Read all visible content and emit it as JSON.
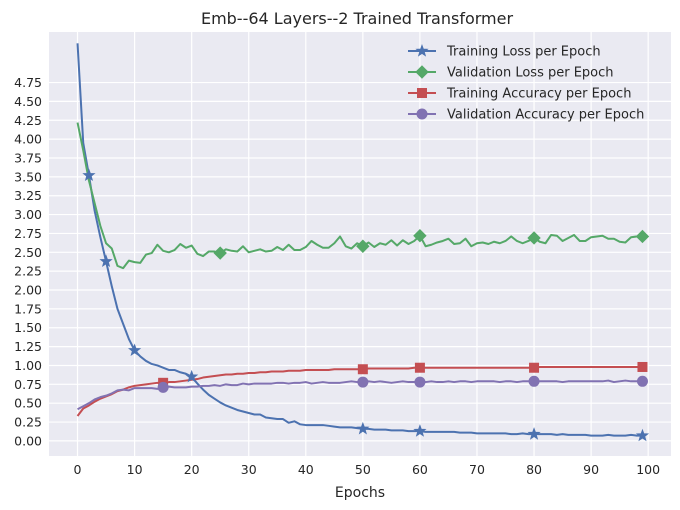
{
  "chart_data": {
    "type": "line",
    "title": "Emb--64 Layers--2 Trained Transformer",
    "xlabel": "Epochs",
    "ylabel": "",
    "xlim": [
      -5,
      104
    ],
    "ylim": [
      -0.2,
      5.42
    ],
    "x_ticks": [
      0,
      10,
      20,
      30,
      40,
      50,
      60,
      70,
      80,
      90,
      100
    ],
    "y_ticks": [
      0.0,
      0.25,
      0.5,
      0.75,
      1.0,
      1.25,
      1.5,
      1.75,
      2.0,
      2.25,
      2.5,
      2.75,
      3.0,
      3.25,
      3.5,
      3.75,
      4.0,
      4.25,
      4.5,
      4.75
    ],
    "y_tick_labels": [
      "0.00",
      "0.25",
      "0.50",
      "0.75",
      "1.00",
      "1.25",
      "1.50",
      "1.75",
      "2.00",
      "2.25",
      "2.50",
      "2.75",
      "3.00",
      "3.25",
      "3.50",
      "3.75",
      "4.00",
      "4.25",
      "4.50",
      "4.75"
    ],
    "grid": true,
    "legend_position": "top-right",
    "x": [
      0,
      1,
      2,
      3,
      4,
      5,
      6,
      7,
      8,
      9,
      10,
      11,
      12,
      13,
      14,
      15,
      16,
      17,
      18,
      19,
      20,
      21,
      22,
      23,
      24,
      25,
      26,
      27,
      28,
      29,
      30,
      31,
      32,
      33,
      34,
      35,
      36,
      37,
      38,
      39,
      40,
      41,
      42,
      43,
      44,
      45,
      46,
      47,
      48,
      49,
      50,
      51,
      52,
      53,
      54,
      55,
      56,
      57,
      58,
      59,
      60,
      61,
      62,
      63,
      64,
      65,
      66,
      67,
      68,
      69,
      70,
      71,
      72,
      73,
      74,
      75,
      76,
      77,
      78,
      79,
      80,
      81,
      82,
      83,
      84,
      85,
      86,
      87,
      88,
      89,
      90,
      91,
      92,
      93,
      94,
      95,
      96,
      97,
      98,
      99
    ],
    "series": [
      {
        "name": "Training Loss per Epoch",
        "color": "#4c72b0",
        "marker": "star",
        "marker_x": [
          2,
          5,
          10,
          20,
          50,
          60,
          80,
          99
        ],
        "values": [
          5.27,
          3.95,
          3.52,
          3.05,
          2.7,
          2.38,
          2.05,
          1.75,
          1.55,
          1.35,
          1.2,
          1.12,
          1.06,
          1.02,
          1.0,
          0.97,
          0.94,
          0.94,
          0.91,
          0.89,
          0.85,
          0.76,
          0.68,
          0.61,
          0.56,
          0.51,
          0.47,
          0.44,
          0.41,
          0.39,
          0.37,
          0.35,
          0.35,
          0.31,
          0.3,
          0.29,
          0.29,
          0.24,
          0.26,
          0.22,
          0.21,
          0.21,
          0.21,
          0.21,
          0.2,
          0.19,
          0.18,
          0.18,
          0.18,
          0.17,
          0.16,
          0.16,
          0.15,
          0.15,
          0.15,
          0.14,
          0.14,
          0.14,
          0.13,
          0.13,
          0.13,
          0.12,
          0.12,
          0.12,
          0.12,
          0.12,
          0.12,
          0.11,
          0.11,
          0.11,
          0.1,
          0.1,
          0.1,
          0.1,
          0.1,
          0.1,
          0.09,
          0.09,
          0.1,
          0.09,
          0.09,
          0.09,
          0.09,
          0.09,
          0.08,
          0.09,
          0.08,
          0.08,
          0.08,
          0.08,
          0.07,
          0.07,
          0.07,
          0.08,
          0.07,
          0.07,
          0.07,
          0.08,
          0.07,
          0.07
        ]
      },
      {
        "name": "Validation Loss per Epoch",
        "color": "#55a868",
        "marker": "diamond",
        "marker_x": [
          25,
          50,
          60,
          80,
          99
        ],
        "values": [
          4.22,
          3.85,
          3.45,
          3.15,
          2.85,
          2.62,
          2.55,
          2.32,
          2.29,
          2.39,
          2.37,
          2.36,
          2.47,
          2.49,
          2.6,
          2.52,
          2.5,
          2.53,
          2.61,
          2.56,
          2.59,
          2.48,
          2.45,
          2.51,
          2.51,
          2.49,
          2.54,
          2.52,
          2.51,
          2.58,
          2.5,
          2.52,
          2.54,
          2.51,
          2.52,
          2.57,
          2.53,
          2.6,
          2.53,
          2.53,
          2.57,
          2.65,
          2.6,
          2.56,
          2.56,
          2.62,
          2.71,
          2.58,
          2.55,
          2.62,
          2.58,
          2.63,
          2.57,
          2.62,
          2.6,
          2.66,
          2.59,
          2.66,
          2.61,
          2.65,
          2.72,
          2.58,
          2.6,
          2.63,
          2.65,
          2.68,
          2.61,
          2.62,
          2.68,
          2.58,
          2.62,
          2.63,
          2.61,
          2.64,
          2.62,
          2.65,
          2.71,
          2.65,
          2.62,
          2.65,
          2.69,
          2.64,
          2.62,
          2.73,
          2.72,
          2.65,
          2.69,
          2.73,
          2.65,
          2.65,
          2.7,
          2.71,
          2.72,
          2.68,
          2.68,
          2.64,
          2.63,
          2.7,
          2.71,
          2.71
        ]
      },
      {
        "name": "Training Accuracy per Epoch",
        "color": "#c44e52",
        "marker": "square",
        "marker_x": [
          15,
          50,
          60,
          80,
          99
        ],
        "values": [
          0.33,
          0.43,
          0.47,
          0.52,
          0.56,
          0.59,
          0.62,
          0.66,
          0.68,
          0.71,
          0.73,
          0.74,
          0.75,
          0.76,
          0.77,
          0.77,
          0.78,
          0.78,
          0.79,
          0.8,
          0.81,
          0.82,
          0.84,
          0.85,
          0.86,
          0.87,
          0.88,
          0.88,
          0.89,
          0.89,
          0.9,
          0.9,
          0.91,
          0.91,
          0.92,
          0.92,
          0.92,
          0.93,
          0.93,
          0.93,
          0.94,
          0.94,
          0.94,
          0.94,
          0.94,
          0.95,
          0.95,
          0.95,
          0.95,
          0.95,
          0.95,
          0.96,
          0.96,
          0.96,
          0.96,
          0.96,
          0.96,
          0.96,
          0.96,
          0.97,
          0.97,
          0.97,
          0.97,
          0.97,
          0.97,
          0.97,
          0.97,
          0.97,
          0.97,
          0.97,
          0.97,
          0.97,
          0.97,
          0.97,
          0.97,
          0.97,
          0.97,
          0.97,
          0.97,
          0.97,
          0.97,
          0.98,
          0.98,
          0.98,
          0.98,
          0.98,
          0.98,
          0.98,
          0.98,
          0.98,
          0.98,
          0.98,
          0.98,
          0.98,
          0.98,
          0.98,
          0.98,
          0.98,
          0.98,
          0.98
        ]
      },
      {
        "name": "Validation Accuracy per Epoch",
        "color": "#8172b2",
        "marker": "circle",
        "marker_x": [
          15,
          50,
          60,
          80,
          99
        ],
        "values": [
          0.42,
          0.46,
          0.5,
          0.55,
          0.58,
          0.6,
          0.63,
          0.67,
          0.68,
          0.67,
          0.7,
          0.7,
          0.7,
          0.7,
          0.69,
          0.71,
          0.72,
          0.71,
          0.71,
          0.71,
          0.72,
          0.72,
          0.73,
          0.73,
          0.74,
          0.73,
          0.75,
          0.74,
          0.74,
          0.76,
          0.75,
          0.76,
          0.76,
          0.76,
          0.76,
          0.77,
          0.77,
          0.76,
          0.77,
          0.77,
          0.78,
          0.76,
          0.77,
          0.78,
          0.77,
          0.77,
          0.77,
          0.78,
          0.79,
          0.78,
          0.78,
          0.79,
          0.78,
          0.79,
          0.78,
          0.77,
          0.78,
          0.79,
          0.78,
          0.78,
          0.78,
          0.78,
          0.79,
          0.78,
          0.78,
          0.79,
          0.78,
          0.79,
          0.79,
          0.78,
          0.79,
          0.79,
          0.79,
          0.79,
          0.78,
          0.79,
          0.79,
          0.78,
          0.79,
          0.79,
          0.79,
          0.79,
          0.79,
          0.79,
          0.79,
          0.78,
          0.79,
          0.79,
          0.79,
          0.79,
          0.79,
          0.79,
          0.79,
          0.8,
          0.78,
          0.79,
          0.8,
          0.79,
          0.79,
          0.79
        ]
      }
    ]
  }
}
